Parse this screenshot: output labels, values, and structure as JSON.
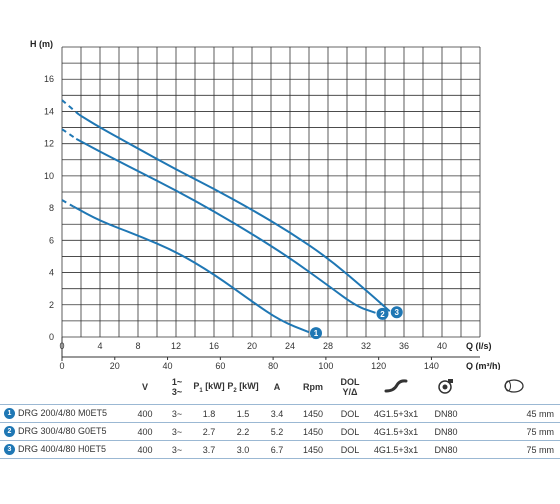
{
  "chart_data": {
    "type": "line",
    "ylabel": "H (m)",
    "xlabel": "Q (l/s)",
    "x2label": "Q (m³/h)",
    "xlim": [
      0,
      44
    ],
    "ylim": [
      0,
      18
    ],
    "x_ticks": [
      "0",
      "4",
      "8",
      "12",
      "16",
      "20",
      "24",
      "28",
      "32",
      "36",
      "40"
    ],
    "x2_ticks": [
      "0",
      "20",
      "40",
      "60",
      "80",
      "100",
      "120",
      "140"
    ],
    "y_ticks": [
      "0",
      "2",
      "4",
      "6",
      "8",
      "10",
      "12",
      "14",
      "16"
    ],
    "grid": true,
    "series": [
      {
        "name": "1",
        "color": "#1f77b4",
        "dashed_upto": 1.2,
        "x": [
          0,
          1.2,
          4,
          8,
          12,
          16,
          20,
          23,
          26
        ],
        "y": [
          8.5,
          8.1,
          7.2,
          6.3,
          5.3,
          3.9,
          2.2,
          1.0,
          0.3
        ]
      },
      {
        "name": "2",
        "color": "#1f77b4",
        "dashed_upto": 1.5,
        "x": [
          0,
          1.5,
          4,
          8,
          12,
          16,
          20,
          24,
          28,
          31,
          33
        ],
        "y": [
          12.9,
          12.3,
          11.5,
          10.3,
          9.1,
          7.8,
          6.4,
          4.9,
          3.2,
          1.9,
          1.5
        ]
      },
      {
        "name": "3",
        "color": "#1f77b4",
        "dashed_upto": 1.8,
        "x": [
          0,
          1.8,
          4,
          8,
          12,
          16,
          20,
          24,
          28,
          32,
          34.5
        ],
        "y": [
          14.7,
          13.8,
          13.0,
          11.7,
          10.4,
          9.2,
          7.9,
          6.5,
          4.9,
          2.9,
          1.6
        ]
      }
    ]
  },
  "table": {
    "headers": {
      "v": "V",
      "phase_top": "1~",
      "phase_bottom": "3~",
      "p1": "P",
      "p1_sub": "1",
      "p1_unit": "[kW]",
      "p2": "P",
      "p2_sub": "2",
      "p2_unit": "[kW]",
      "a": "A",
      "rpm": "Rpm",
      "dol_top": "DOL",
      "dol_bottom": "Y/Δ"
    },
    "header_icons": [
      "cable-icon",
      "pump-outlet-icon",
      "solids-passage-icon"
    ],
    "rows": [
      {
        "num": "1",
        "model": "DRG 200/4/80 M0ET5",
        "v": "400",
        "phase": "3~",
        "p1": "1.8",
        "p2": "1.5",
        "a": "3.4",
        "rpm": "1450",
        "start": "DOL",
        "cable": "4G1.5+3x1",
        "outlet": "DN80",
        "passage": "45 mm"
      },
      {
        "num": "2",
        "model": "DRG 300/4/80 G0ET5",
        "v": "400",
        "phase": "3~",
        "p1": "2.7",
        "p2": "2.2",
        "a": "5.2",
        "rpm": "1450",
        "start": "DOL",
        "cable": "4G1.5+3x1",
        "outlet": "DN80",
        "passage": "75 mm"
      },
      {
        "num": "3",
        "model": "DRG 400/4/80 H0ET5",
        "v": "400",
        "phase": "3~",
        "p1": "3.7",
        "p2": "3.0",
        "a": "6.7",
        "rpm": "1450",
        "start": "DOL",
        "cable": "4G1.5+3x1",
        "outlet": "DN80",
        "passage": "75 mm"
      }
    ]
  }
}
